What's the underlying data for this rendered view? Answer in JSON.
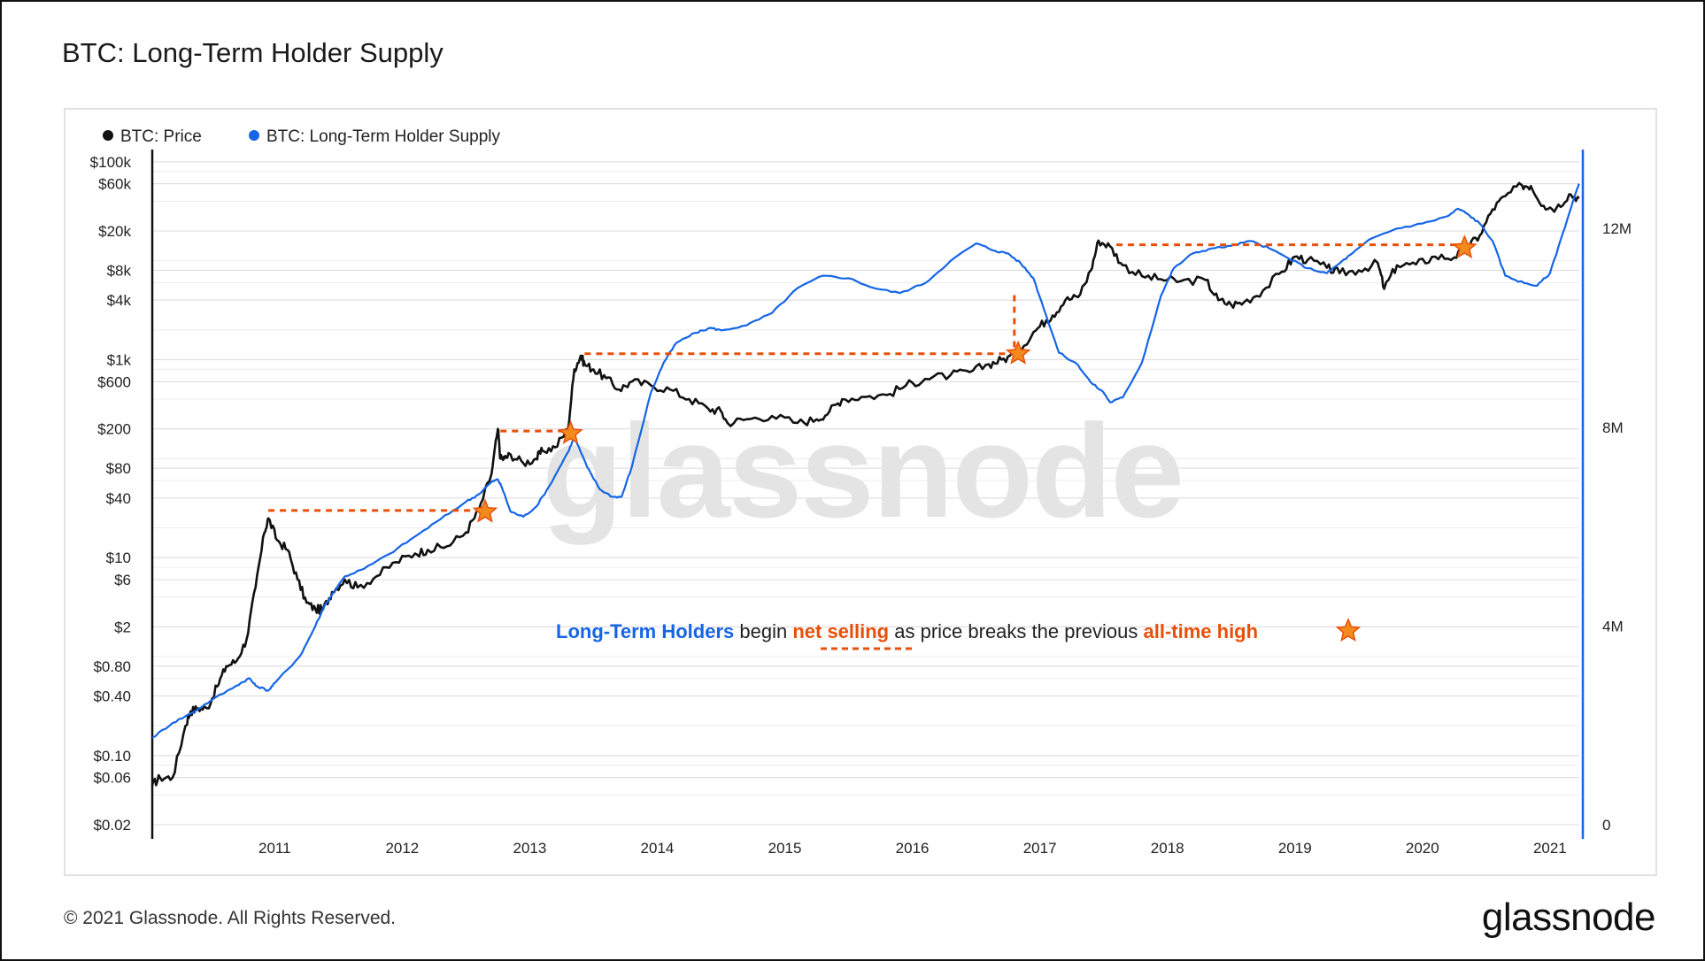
{
  "title": "BTC: Long-Term Holder Supply",
  "footer": {
    "copyright": "© 2021 Glassnode. All Rights Reserved.",
    "brand": "glassnode"
  },
  "colors": {
    "price": "#111111",
    "supply": "#1565e6",
    "accent": "#e8500a",
    "star": "#f28a1e"
  },
  "chart_data": {
    "type": "line",
    "title": "BTC: Long-Term Holder Supply",
    "legend": [
      {
        "name": "BTC: Price",
        "color": "#111111"
      },
      {
        "name": "BTC: Long-Term Holder Supply",
        "color": "#1565e6"
      }
    ],
    "legend_position": "top-left",
    "watermark": "glassnode",
    "x_ticks": [
      "2011",
      "2012",
      "2013",
      "2014",
      "2015",
      "2016",
      "2017",
      "2018",
      "2019",
      "2020",
      "2021"
    ],
    "x_range": [
      2010.54,
      2021.73
    ],
    "y_left": {
      "scale": "log",
      "range": [
        0.02,
        120000
      ],
      "ticks": [
        {
          "label": "$100k",
          "value": 100000
        },
        {
          "label": "$60k",
          "value": 60000
        },
        {
          "label": "$20k",
          "value": 20000
        },
        {
          "label": "$8k",
          "value": 8000
        },
        {
          "label": "$4k",
          "value": 4000
        },
        {
          "label": "$1k",
          "value": 1000
        },
        {
          "label": "$600",
          "value": 600
        },
        {
          "label": "$200",
          "value": 200
        },
        {
          "label": "$80",
          "value": 80
        },
        {
          "label": "$40",
          "value": 40
        },
        {
          "label": "$10",
          "value": 10
        },
        {
          "label": "$6",
          "value": 6
        },
        {
          "label": "$2",
          "value": 2
        },
        {
          "label": "$0.80",
          "value": 0.8
        },
        {
          "label": "$0.40",
          "value": 0.4
        },
        {
          "label": "$0.10",
          "value": 0.1
        },
        {
          "label": "$0.06",
          "value": 0.06
        },
        {
          "label": "$0.02",
          "value": 0.02
        }
      ]
    },
    "y_right": {
      "scale": "linear",
      "range": [
        0,
        13500000
      ],
      "ticks": [
        {
          "label": "12M",
          "value": 12000000
        },
        {
          "label": "8M",
          "value": 8000000
        },
        {
          "label": "4M",
          "value": 4000000
        },
        {
          "label": "0",
          "value": 0
        }
      ]
    },
    "series": [
      {
        "name": "BTC: Price",
        "axis": "left",
        "x": [
          2010.54,
          2010.6,
          2010.7,
          2010.8,
          2010.84,
          2010.9,
          2010.97,
          2011.05,
          2011.12,
          2011.2,
          2011.28,
          2011.35,
          2011.42,
          2011.45,
          2011.52,
          2011.6,
          2011.68,
          2011.75,
          2011.82,
          2011.88,
          2011.95,
          2012.05,
          2012.15,
          2012.3,
          2012.45,
          2012.6,
          2012.7,
          2012.85,
          2013.0,
          2013.1,
          2013.2,
          2013.25,
          2013.27,
          2013.3,
          2013.35,
          2013.45,
          2013.55,
          2013.6,
          2013.7,
          2013.8,
          2013.85,
          2013.9,
          2013.93,
          2014.0,
          2014.1,
          2014.2,
          2014.3,
          2014.45,
          2014.6,
          2014.75,
          2014.9,
          2015.0,
          2015.05,
          2015.2,
          2015.4,
          2015.6,
          2015.75,
          2015.85,
          2015.95,
          2016.1,
          2016.3,
          2016.45,
          2016.6,
          2016.8,
          2016.95,
          2017.1,
          2017.2,
          2017.3,
          2017.45,
          2017.55,
          2017.6,
          2017.7,
          2017.8,
          2017.9,
          2017.96,
          2018.05,
          2018.15,
          2018.3,
          2018.45,
          2018.6,
          2018.8,
          2018.9,
          2019.0,
          2019.1,
          2019.25,
          2019.4,
          2019.5,
          2019.6,
          2019.75,
          2019.85,
          2020.0,
          2020.15,
          2020.2,
          2020.3,
          2020.45,
          2020.6,
          2020.75,
          2020.85,
          2020.95,
          2021.05,
          2021.15,
          2021.28,
          2021.35,
          2021.45,
          2021.55,
          2021.65,
          2021.73
        ],
        "values": [
          0.05,
          0.06,
          0.06,
          0.2,
          0.28,
          0.3,
          0.3,
          0.5,
          0.8,
          0.9,
          1.5,
          5,
          18,
          25,
          15,
          12,
          6,
          3.5,
          3,
          3,
          4.5,
          6,
          5,
          6.5,
          9,
          11,
          12,
          13,
          18,
          30,
          70,
          200,
          100,
          100,
          110,
          90,
          100,
          120,
          130,
          200,
          800,
          1100,
          900,
          800,
          650,
          500,
          600,
          550,
          500,
          400,
          320,
          300,
          230,
          250,
          270,
          230,
          250,
          300,
          400,
          420,
          440,
          550,
          640,
          700,
          750,
          900,
          1000,
          1100,
          1900,
          2500,
          2800,
          4000,
          4300,
          8000,
          16000,
          14000,
          9000,
          7000,
          6500,
          6200,
          6400,
          4000,
          3600,
          3800,
          5000,
          7800,
          11000,
          10200,
          8500,
          7500,
          8000,
          9500,
          5200,
          9000,
          9200,
          11000,
          10800,
          13500,
          18000,
          33000,
          45000,
          58000,
          57000,
          36000,
          34000,
          47000,
          43000
        ]
      },
      {
        "name": "BTC: Long-Term Holder Supply",
        "axis": "right",
        "x": [
          2010.54,
          2010.7,
          2010.85,
          2011.0,
          2011.2,
          2011.3,
          2011.35,
          2011.45,
          2011.5,
          2011.7,
          2011.8,
          2011.9,
          2012.05,
          2012.2,
          2012.4,
          2012.6,
          2012.8,
          2013.0,
          2013.1,
          2013.2,
          2013.25,
          2013.28,
          2013.35,
          2013.45,
          2013.55,
          2013.65,
          2013.8,
          2013.85,
          2013.95,
          2014.05,
          2014.15,
          2014.22,
          2014.3,
          2014.45,
          2014.55,
          2014.65,
          2014.8,
          2014.92,
          2015.0,
          2015.2,
          2015.4,
          2015.6,
          2015.8,
          2016.0,
          2016.2,
          2016.4,
          2016.6,
          2016.8,
          2017.0,
          2017.15,
          2017.25,
          2017.35,
          2017.45,
          2017.55,
          2017.65,
          2017.8,
          2017.9,
          2018.0,
          2018.05,
          2018.15,
          2018.3,
          2018.45,
          2018.55,
          2018.7,
          2018.85,
          2019.0,
          2019.15,
          2019.3,
          2019.45,
          2019.6,
          2019.75,
          2019.85,
          2019.95,
          2020.1,
          2020.3,
          2020.5,
          2020.7,
          2020.78,
          2020.85,
          2020.95,
          2021.05,
          2021.15,
          2021.3,
          2021.4,
          2021.5,
          2021.6,
          2021.7,
          2021.73
        ],
        "values": [
          1750000,
          2050000,
          2250000,
          2500000,
          2800000,
          2950000,
          2800000,
          2700000,
          2850000,
          3400000,
          3900000,
          4450000,
          5000000,
          5150000,
          5450000,
          5800000,
          6150000,
          6500000,
          6650000,
          6900000,
          6950000,
          6800000,
          6300000,
          6200000,
          6400000,
          6800000,
          7500000,
          7800000,
          7200000,
          6750000,
          6600000,
          6600000,
          7200000,
          8700000,
          9300000,
          9700000,
          9900000,
          10000000,
          9950000,
          10050000,
          10300000,
          10800000,
          11050000,
          11000000,
          10800000,
          10700000,
          10900000,
          11350000,
          11700000,
          11550000,
          11500000,
          11300000,
          11000000,
          10250000,
          9500000,
          9250000,
          8900000,
          8700000,
          8500000,
          8600000,
          9300000,
          10650000,
          11200000,
          11500000,
          11600000,
          11650000,
          11750000,
          11600000,
          11400000,
          11200000,
          11100000,
          11300000,
          11500000,
          11800000,
          12000000,
          12100000,
          12250000,
          12400000,
          12300000,
          12100000,
          11750000,
          11050000,
          10900000,
          10850000,
          11100000,
          11900000,
          12700000,
          12900000
        ]
      }
    ],
    "ath_markers": [
      {
        "x": 2013.15,
        "price": 29
      },
      {
        "x": 2013.82,
        "price": 180
      },
      {
        "x": 2017.33,
        "price": 1150
      },
      {
        "x": 2020.83,
        "price": 13500
      }
    ],
    "net_selling_segments": [
      {
        "x_start": 2011.45,
        "x_end": 2013.15,
        "price": 30,
        "drop_to": 29
      },
      {
        "x_start": 2013.27,
        "x_end": 2013.82,
        "price": 190,
        "drop_to": 180
      },
      {
        "x_start": 2013.93,
        "x_end": 2017.27,
        "price": 1150,
        "drop_to": 1150
      },
      {
        "x_start": 2017.3,
        "x_end": 2017.3,
        "price": 4500,
        "drop_to": 1150
      },
      {
        "x_start": 2018.1,
        "x_end": 2020.79,
        "price": 14500,
        "drop_to": 13500
      }
    ],
    "annotation": {
      "part1": "Long-Term Holders",
      "part2": " begin ",
      "part3": "net selling",
      "part4": " as price breaks the previous ",
      "part5": "all-time high"
    }
  }
}
